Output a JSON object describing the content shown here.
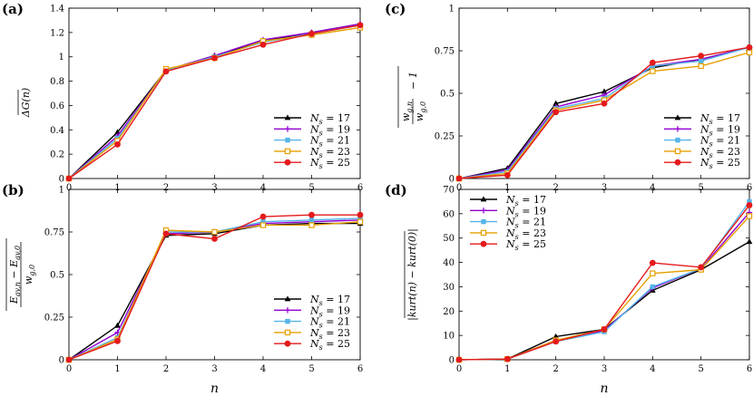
{
  "chart_data": [
    {
      "type": "line",
      "panel_label": "(a)",
      "ylabel_parts": [
        "ΔG",
        "(n)"
      ],
      "xlabel": "",
      "x": [
        0,
        1,
        2,
        3,
        4,
        5,
        6
      ],
      "xlim": [
        0,
        6
      ],
      "ylim": [
        0,
        1.4
      ],
      "yticks": [
        "0",
        "0.2",
        "0.4",
        "0.6",
        "0.8",
        "1",
        "1.2",
        "1.4"
      ],
      "yticks_values": [
        0,
        0.2,
        0.4,
        0.6,
        0.8,
        1.0,
        1.2,
        1.4
      ],
      "xticks": [
        "0",
        "1",
        "2",
        "3",
        "4",
        "5",
        "6"
      ],
      "legend_position": "lower-right",
      "series": [
        {
          "name": "N_s = 17",
          "legend_main": "N",
          "legend_sub": "s",
          "legend_rest": " = 17",
          "color": "#000000",
          "marker": "triangle",
          "values": [
            0,
            0.38,
            0.89,
            1.01,
            1.13,
            1.2,
            1.27
          ]
        },
        {
          "name": "N_s = 19",
          "legend_main": "N",
          "legend_sub": "s",
          "legend_rest": " = 19",
          "color": "#9400d3",
          "marker": "plus",
          "values": [
            0,
            0.35,
            0.89,
            1.01,
            1.14,
            1.2,
            1.27
          ]
        },
        {
          "name": "N_s = 21",
          "legend_main": "N",
          "legend_sub": "s",
          "legend_rest": " = 21",
          "color": "#56b4e9",
          "marker": "square",
          "values": [
            0,
            0.33,
            0.89,
            1.0,
            1.12,
            1.19,
            1.26
          ]
        },
        {
          "name": "N_s = 23",
          "legend_main": "N",
          "legend_sub": "s",
          "legend_rest": " = 23",
          "color": "#e69f00",
          "marker": "square-open",
          "values": [
            0,
            0.31,
            0.9,
            0.99,
            1.13,
            1.18,
            1.24
          ]
        },
        {
          "name": "N_s = 25",
          "legend_main": "N",
          "legend_sub": "s",
          "legend_rest": " = 25",
          "color": "#e41a1c",
          "marker": "circle",
          "values": [
            0,
            0.28,
            0.88,
            0.99,
            1.1,
            1.19,
            1.26
          ]
        }
      ]
    },
    {
      "type": "line",
      "panel_label": "(c)",
      "ylabel_parts": [
        "w",
        "g,n",
        "w",
        "g,0",
        "− 1"
      ],
      "xlabel": "",
      "x": [
        0,
        1,
        2,
        3,
        4,
        5,
        6
      ],
      "xlim": [
        0,
        6
      ],
      "ylim": [
        0,
        1
      ],
      "yticks": [
        "0",
        "0.25",
        "0.5",
        "0.75",
        "1"
      ],
      "yticks_values": [
        0,
        0.25,
        0.5,
        0.75,
        1.0
      ],
      "xticks": [
        "0",
        "1",
        "2",
        "3",
        "4",
        "5",
        "6"
      ],
      "legend_position": "lower-right",
      "series": [
        {
          "name": "N_s = 17",
          "legend_main": "N",
          "legend_sub": "s",
          "legend_rest": " = 17",
          "color": "#000000",
          "marker": "triangle",
          "values": [
            0,
            0.06,
            0.44,
            0.51,
            0.65,
            0.7,
            0.77
          ]
        },
        {
          "name": "N_s = 19",
          "legend_main": "N",
          "legend_sub": "s",
          "legend_rest": " = 19",
          "color": "#9400d3",
          "marker": "plus",
          "values": [
            0,
            0.05,
            0.42,
            0.49,
            0.66,
            0.7,
            0.77
          ]
        },
        {
          "name": "N_s = 21",
          "legend_main": "N",
          "legend_sub": "s",
          "legend_rest": " = 21",
          "color": "#56b4e9",
          "marker": "square",
          "values": [
            0,
            0.04,
            0.41,
            0.47,
            0.66,
            0.69,
            0.77
          ]
        },
        {
          "name": "N_s = 23",
          "legend_main": "N",
          "legend_sub": "s",
          "legend_rest": " = 23",
          "color": "#e69f00",
          "marker": "square-open",
          "values": [
            0,
            0.03,
            0.4,
            0.46,
            0.63,
            0.66,
            0.74
          ]
        },
        {
          "name": "N_s = 25",
          "legend_main": "N",
          "legend_sub": "s",
          "legend_rest": " = 25",
          "color": "#e41a1c",
          "marker": "circle",
          "values": [
            0,
            0.02,
            0.39,
            0.44,
            0.68,
            0.72,
            0.77
          ]
        }
      ]
    },
    {
      "type": "line",
      "panel_label": "(b)",
      "ylabel_parts": [
        "E",
        "av,n",
        " − E",
        "av,0",
        "w",
        "g,0"
      ],
      "xlabel": "n",
      "x": [
        0,
        1,
        2,
        3,
        4,
        5,
        6
      ],
      "xlim": [
        0,
        6
      ],
      "ylim": [
        0,
        1
      ],
      "yticks": [
        "0",
        "0.25",
        "0.5",
        "0.75",
        "1"
      ],
      "yticks_values": [
        0,
        0.25,
        0.5,
        0.75,
        1.0
      ],
      "xticks": [
        "0",
        "1",
        "2",
        "3",
        "4",
        "5",
        "6"
      ],
      "legend_position": "lower-right",
      "series": [
        {
          "name": "N_s = 17",
          "legend_main": "N",
          "legend_sub": "s",
          "legend_rest": " = 17",
          "color": "#000000",
          "marker": "triangle",
          "values": [
            0,
            0.2,
            0.73,
            0.74,
            0.79,
            0.8,
            0.8
          ]
        },
        {
          "name": "N_s = 19",
          "legend_main": "N",
          "legend_sub": "s",
          "legend_rest": " = 19",
          "color": "#9400d3",
          "marker": "plus",
          "values": [
            0,
            0.16,
            0.74,
            0.75,
            0.8,
            0.81,
            0.82
          ]
        },
        {
          "name": "N_s = 21",
          "legend_main": "N",
          "legend_sub": "s",
          "legend_rest": " = 21",
          "color": "#56b4e9",
          "marker": "square",
          "values": [
            0,
            0.13,
            0.75,
            0.75,
            0.81,
            0.82,
            0.83
          ]
        },
        {
          "name": "N_s = 23",
          "legend_main": "N",
          "legend_sub": "s",
          "legend_rest": " = 23",
          "color": "#e69f00",
          "marker": "square-open",
          "values": [
            0,
            0.12,
            0.76,
            0.75,
            0.79,
            0.79,
            0.81
          ]
        },
        {
          "name": "N_s = 25",
          "legend_main": "N",
          "legend_sub": "s",
          "legend_rest": " = 25",
          "color": "#e41a1c",
          "marker": "circle",
          "values": [
            0,
            0.11,
            0.74,
            0.71,
            0.84,
            0.85,
            0.85
          ]
        }
      ]
    },
    {
      "type": "line",
      "panel_label": "(d)",
      "ylabel_parts": [
        "|kurt(n) − kurt(0)|"
      ],
      "xlabel": "n",
      "x": [
        0,
        1,
        2,
        3,
        4,
        5,
        6
      ],
      "xlim": [
        0,
        6
      ],
      "ylim": [
        0,
        70
      ],
      "yticks": [
        "0",
        "10",
        "20",
        "30",
        "40",
        "50",
        "60",
        "70"
      ],
      "yticks_values": [
        0,
        10,
        20,
        30,
        40,
        50,
        60,
        70
      ],
      "xticks": [
        "0",
        "1",
        "2",
        "3",
        "4",
        "5",
        "6"
      ],
      "legend_position": "upper-left",
      "series": [
        {
          "name": "N_s = 17",
          "legend_main": "N",
          "legend_sub": "s",
          "legend_rest": " = 17",
          "color": "#000000",
          "marker": "triangle",
          "values": [
            0,
            0.3,
            9.5,
            12.5,
            28.5,
            37.0,
            48.5
          ]
        },
        {
          "name": "N_s = 19",
          "legend_main": "N",
          "legend_sub": "s",
          "legend_rest": " = 19",
          "color": "#9400d3",
          "marker": "plus",
          "values": [
            0,
            0.3,
            8.0,
            12.0,
            29.5,
            37.5,
            60.5
          ]
        },
        {
          "name": "N_s = 21",
          "legend_main": "N",
          "legend_sub": "s",
          "legend_rest": " = 21",
          "color": "#56b4e9",
          "marker": "square",
          "values": [
            0,
            0.3,
            7.5,
            11.5,
            30.0,
            37.5,
            65.0
          ]
        },
        {
          "name": "N_s = 23",
          "legend_main": "N",
          "legend_sub": "s",
          "legend_rest": " = 23",
          "color": "#e69f00",
          "marker": "square-open",
          "values": [
            0,
            0.3,
            8.0,
            12.5,
            35.5,
            37.0,
            59.0
          ]
        },
        {
          "name": "N_s = 25",
          "legend_main": "N",
          "legend_sub": "s",
          "legend_rest": " = 25",
          "color": "#e41a1c",
          "marker": "circle",
          "values": [
            0,
            0.3,
            7.5,
            12.5,
            39.8,
            38.0,
            63.5
          ]
        }
      ]
    }
  ]
}
